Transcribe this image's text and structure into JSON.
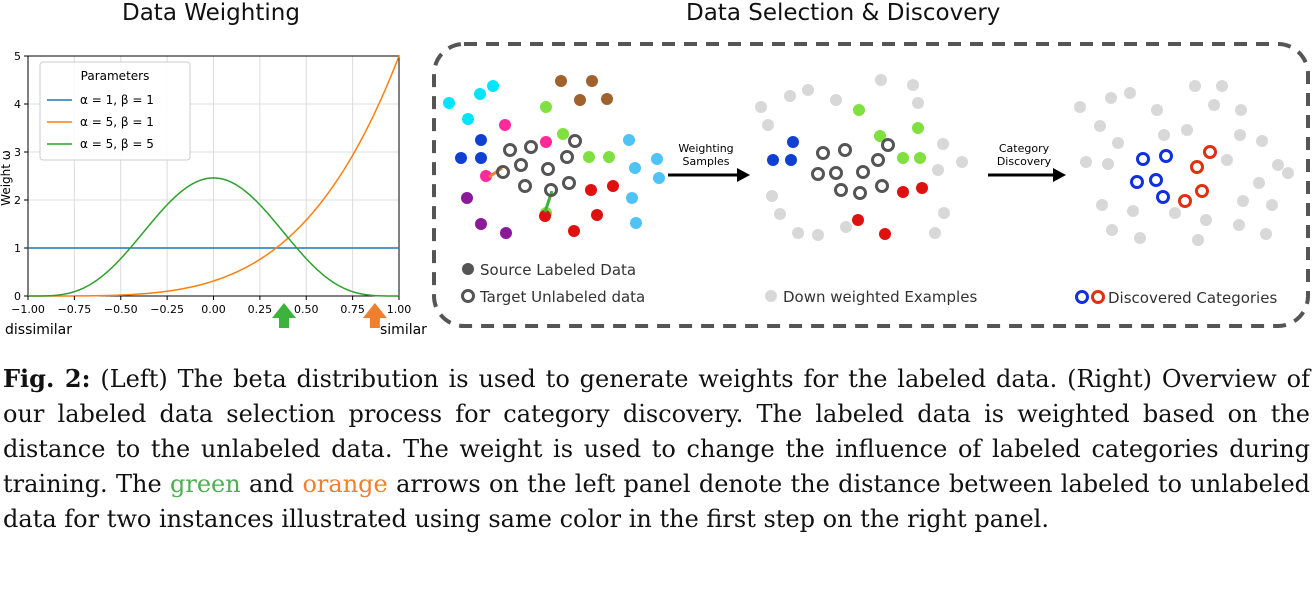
{
  "left_title": "Data Weighting",
  "right_title": "Data Selection & Discovery",
  "chart_data": {
    "type": "line",
    "x": [
      -1.0,
      -0.9,
      -0.8,
      -0.7,
      -0.6,
      -0.5,
      -0.4,
      -0.3,
      -0.2,
      -0.1,
      0.0,
      0.1,
      0.2,
      0.3,
      0.4,
      0.5,
      0.6,
      0.7,
      0.8,
      0.9,
      1.0
    ],
    "series": [
      {
        "name": "α = 1, β = 1",
        "color": "#1f77b4",
        "values": [
          1,
          1,
          1,
          1,
          1,
          1,
          1,
          1,
          1,
          1,
          1,
          1,
          1,
          1,
          1,
          1,
          1,
          1,
          1,
          1,
          1
        ]
      },
      {
        "name": "α = 5, β = 1",
        "color": "#ff7f0e",
        "values": [
          0.0,
          0.0,
          0.0,
          0.0,
          0.01,
          0.02,
          0.03,
          0.06,
          0.1,
          0.2,
          0.31,
          0.46,
          0.65,
          0.89,
          1.2,
          1.58,
          2.05,
          2.61,
          3.28,
          4.07,
          5.0
        ]
      },
      {
        "name": "α = 5, β = 5",
        "color": "#2ca02c",
        "values": [
          0.0,
          0.0,
          0.01,
          0.04,
          0.16,
          0.43,
          0.87,
          1.41,
          1.94,
          2.32,
          2.46,
          2.32,
          1.94,
          1.41,
          0.87,
          0.43,
          0.16,
          0.04,
          0.01,
          0.0,
          0.0
        ]
      }
    ],
    "xticks": [
      "−1.00",
      "−0.75",
      "−0.50",
      "−0.25",
      "0.00",
      "0.25",
      "0.50",
      "0.75",
      "1.00"
    ],
    "xtick_values": [
      -1.0,
      -0.75,
      -0.5,
      -0.25,
      0.0,
      0.25,
      0.5,
      0.75,
      1.0
    ],
    "yticks": [
      "0",
      "1",
      "2",
      "3",
      "4",
      "5"
    ],
    "ytick_values": [
      0,
      1,
      2,
      3,
      4,
      5
    ],
    "xlim": [
      -1.0,
      1.0
    ],
    "ylim": [
      0,
      5
    ],
    "ylabel": "Weight ω",
    "legend_title": "Parameters",
    "legend_position": "top-left",
    "grid": true,
    "x_left_label": "dissimilar",
    "x_right_label": "similar",
    "arrows": [
      {
        "color": "#3cb43c",
        "x": 0.38
      },
      {
        "color": "#f07f2e",
        "x": 0.87
      }
    ]
  },
  "diagram": {
    "arrow1_label": [
      "Weighting",
      "Samples"
    ],
    "arrow2_label": [
      "Category",
      "Discovery"
    ],
    "legend_source": "Source Labeled Data",
    "legend_target": "Target Unlabeled data",
    "legend_down": "Down weighted Examples",
    "legend_discovered": "Discovered Categories",
    "colors": {
      "cyan": "#00e5ff",
      "blue": "#1040d0",
      "pink": "#ff2a9a",
      "purple": "#8b1a9a",
      "brown": "#a0622d",
      "lightgreen": "#80e040",
      "red": "#e01010",
      "lightblue": "#4fc3f7",
      "gray": "#d8d8d8",
      "ring": "#555555",
      "disc_blue": "#1030e0",
      "disc_red": "#e03010"
    }
  },
  "caption": {
    "label": "Fig. 2:",
    "text1": " (Left) The beta distribution is used to generate weights for the labeled data. (Right) Overview of our labeled data selection process for category discovery. The labeled data is weighted based on the distance to the unlabeled data. The weight is used to change the influence of labeled categories during training. The ",
    "green": "green",
    "and": " and ",
    "orange": "orange",
    "text2": " arrows on the left panel denote the distance between labeled to unlabeled data for two instances illustrated using same color in the first step on the right panel."
  }
}
